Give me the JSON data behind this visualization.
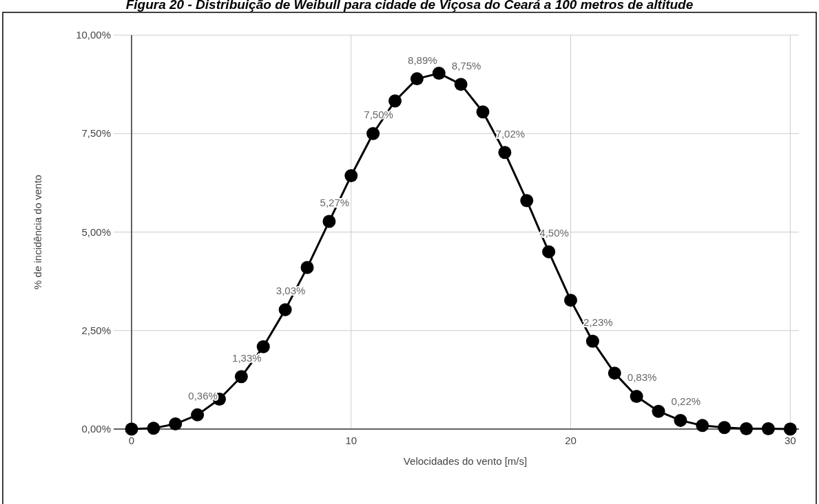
{
  "chart_data": {
    "type": "line",
    "title": "Figura 20 - Distribuição de Weibull para cidade de Viçosa do Ceará a 100 metros de altitude",
    "xlabel": "Velocidades do vento [m/s]",
    "ylabel": "% de incidência do vento",
    "x": [
      0,
      1,
      2,
      3,
      4,
      5,
      6,
      7,
      8,
      9,
      10,
      11,
      12,
      13,
      14,
      15,
      16,
      17,
      18,
      19,
      20,
      21,
      22,
      23,
      24,
      25,
      26,
      27,
      28,
      29,
      30
    ],
    "series": [
      {
        "color": "#000000",
        "values": [
          0,
          0.02,
          0.13,
          0.36,
          0.76,
          1.33,
          2.09,
          3.03,
          4.1,
          5.27,
          6.43,
          7.5,
          8.33,
          8.89,
          9.03,
          8.75,
          8.05,
          7.02,
          5.8,
          4.5,
          3.27,
          2.23,
          1.42,
          0.83,
          0.45,
          0.22,
          0.09,
          0.04,
          0.01,
          0.01,
          0
        ],
        "value_labels": [
          null,
          null,
          null,
          "0,36%",
          null,
          "1,33%",
          null,
          "3,03%",
          null,
          "5,27%",
          null,
          "7,50%",
          null,
          "8,89%",
          null,
          "8,75%",
          null,
          "7,02%",
          null,
          "4,50%",
          null,
          "2,23%",
          null,
          "0,83%",
          null,
          "0,22%",
          null,
          null,
          null,
          null,
          null
        ]
      }
    ],
    "xlim": [
      0,
      30.4
    ],
    "xticks": [
      0,
      10,
      20,
      30
    ],
    "ylim": [
      0,
      10
    ],
    "yticks": [
      {
        "value": 0,
        "label": "0,00%"
      },
      {
        "value": 2.5,
        "label": "2,50%"
      },
      {
        "value": 5,
        "label": "5,00%"
      },
      {
        "value": 7.5,
        "label": "7,50%"
      },
      {
        "value": 10,
        "label": "10,00%"
      }
    ],
    "grid": true,
    "marker": "circle"
  }
}
